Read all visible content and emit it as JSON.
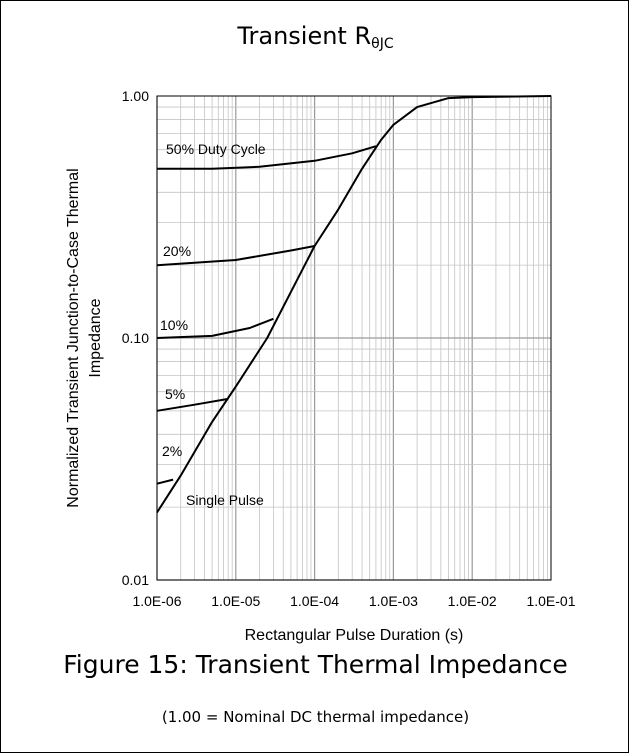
{
  "chart_data": {
    "type": "line",
    "title": "Transient R",
    "title_subscript": "θJC",
    "xlabel": "Rectangular Pulse Duration (s)",
    "ylabel_lines": [
      "Normalized Transient Junction-to-Case Thermal",
      "Impedance"
    ],
    "xscale": "log",
    "yscale": "log",
    "xlim": [
      1e-06,
      0.1
    ],
    "ylim": [
      0.01,
      1.0
    ],
    "grid": true,
    "x_ticks": [
      {
        "value": 1e-06,
        "label": "1.0E-06"
      },
      {
        "value": 1e-05,
        "label": "1.0E-05"
      },
      {
        "value": 0.0001,
        "label": "1.0E-04"
      },
      {
        "value": 0.001,
        "label": "1.0E-03"
      },
      {
        "value": 0.01,
        "label": "1.0E-02"
      },
      {
        "value": 0.1,
        "label": "1.0E-01"
      }
    ],
    "y_ticks": [
      {
        "value": 1.0,
        "label": "1.00"
      },
      {
        "value": 0.1,
        "label": "0.10"
      },
      {
        "value": 0.01,
        "label": "0.01"
      }
    ],
    "series": [
      {
        "name": "Single Pulse",
        "label": "Single Pulse",
        "x": [
          1e-06,
          2e-06,
          5e-06,
          1e-05,
          2.5e-05,
          5e-05,
          0.0001,
          0.0002,
          0.0004,
          0.0007,
          0.001,
          0.002,
          0.005,
          0.01,
          0.1
        ],
        "y": [
          0.019,
          0.027,
          0.045,
          0.063,
          0.1,
          0.155,
          0.24,
          0.34,
          0.5,
          0.66,
          0.76,
          0.9,
          0.98,
          0.99,
          1.0
        ]
      },
      {
        "name": "50%",
        "label": "50%  Duty Cycle",
        "x": [
          1e-06,
          5e-06,
          2e-05,
          0.0001,
          0.0003,
          0.0006
        ],
        "y": [
          0.5,
          0.5,
          0.51,
          0.54,
          0.58,
          0.62
        ]
      },
      {
        "name": "20%",
        "label": "20%",
        "x": [
          1e-06,
          1e-05,
          5e-05,
          0.0001
        ],
        "y": [
          0.2,
          0.21,
          0.23,
          0.24
        ]
      },
      {
        "name": "10%",
        "label": "10%",
        "x": [
          1e-06,
          5e-06,
          1.5e-05,
          3e-05
        ],
        "y": [
          0.1,
          0.102,
          0.11,
          0.12
        ]
      },
      {
        "name": "5%",
        "label": "5%",
        "x": [
          1e-06,
          3e-06,
          8e-06
        ],
        "y": [
          0.05,
          0.053,
          0.056
        ]
      },
      {
        "name": "2%",
        "label": "2%",
        "x": [
          1e-06,
          1.6e-06
        ],
        "y": [
          0.025,
          0.026
        ]
      }
    ]
  },
  "caption": "Figure 15: Transient Thermal Impedance",
  "note": "(1.00 = Nominal DC thermal impedance)"
}
